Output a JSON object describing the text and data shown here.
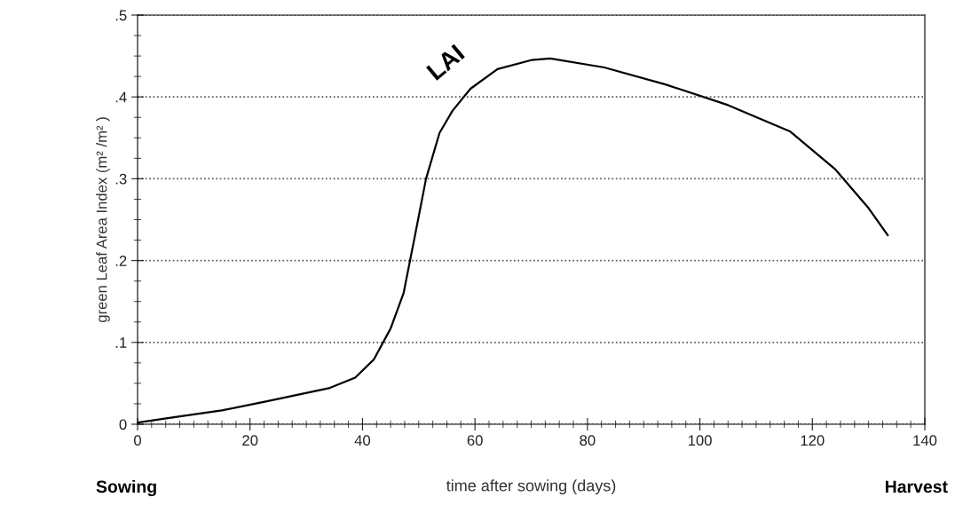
{
  "chart_data": {
    "type": "line",
    "xlabel": "time after sowing (days)",
    "ylabel": "green Leaf Area Index (m² /m² )",
    "x": [
      0,
      7,
      15,
      23,
      34,
      38.7,
      42,
      45,
      47.3,
      49.2,
      51.3,
      53.7,
      56,
      59.2,
      64,
      70,
      73.4,
      83,
      94,
      105,
      116,
      124,
      130,
      133.4
    ],
    "series": [
      {
        "color": "#000000",
        "values": [
          0.002,
          0.009,
          0.017,
          0.028,
          0.044,
          0.057,
          0.079,
          0.117,
          0.16,
          0.226,
          0.3,
          0.356,
          0.383,
          0.41,
          0.434,
          0.445,
          0.447,
          0.436,
          0.415,
          0.39,
          0.358,
          0.312,
          0.264,
          0.231
        ]
      }
    ],
    "xlim": [
      0,
      140
    ],
    "xticks": [
      0,
      20,
      40,
      60,
      80,
      100,
      120,
      140
    ],
    "ylim": [
      0,
      0.5
    ],
    "yticks": [
      {
        "value": 0,
        "label": "0"
      },
      {
        "value": 0.1,
        "label": ".1"
      },
      {
        "value": 0.2,
        "label": ".2"
      },
      {
        "value": 0.3,
        "label": ".3"
      },
      {
        "value": 0.4,
        "label": ".4"
      },
      {
        "value": 0.5,
        "label": ".5"
      }
    ],
    "grid": "y",
    "legend": false,
    "marker": "none",
    "line_style": "solid",
    "annotations": [
      "LAI",
      "Sowing",
      "Harvest"
    ]
  }
}
